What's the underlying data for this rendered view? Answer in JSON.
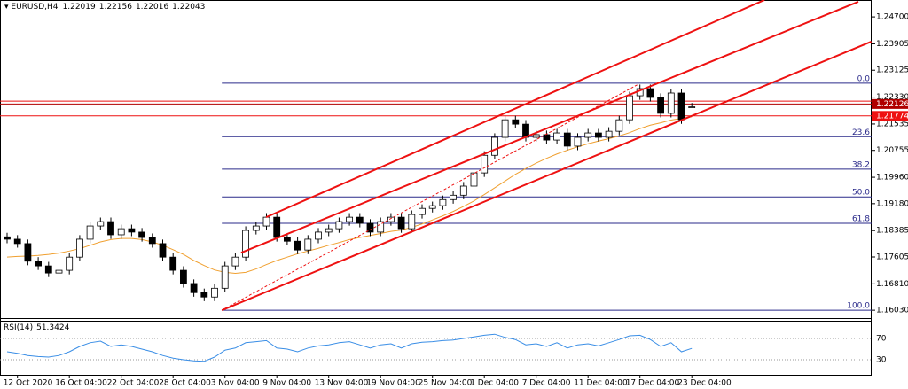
{
  "chart_data": {
    "type": "candlestick",
    "title": "EURUSD,H4",
    "categories": [
      null,
      "12 Oct 2020",
      null,
      null,
      null,
      null,
      "16 Oct 04:00",
      null,
      null,
      null,
      null,
      "22 Oct 04:00",
      null,
      null,
      null,
      null,
      "28 Oct 04:00",
      null,
      null,
      null,
      null,
      "3 Nov 04:00",
      null,
      null,
      null,
      null,
      "9 Nov 04:00",
      null,
      null,
      null,
      null,
      "13 Nov 04:00",
      null,
      null,
      null,
      null,
      "19 Nov 04:00",
      null,
      null,
      null,
      null,
      "25 Nov 04:00",
      null,
      null,
      null,
      null,
      "1 Dec 04:00",
      null,
      null,
      null,
      null,
      "7 Dec 04:00",
      null,
      null,
      null,
      null,
      "11 Dec 04:00",
      null,
      null,
      null,
      null,
      "17 Dec 04:00",
      null,
      null,
      null,
      null,
      "23 Dec 04:00"
    ],
    "open": [
      1.182,
      1.1813,
      1.18,
      1.1748,
      1.1734,
      1.1713,
      1.1721,
      1.176,
      1.1813,
      1.1852,
      1.1865,
      1.1826,
      1.1844,
      1.1834,
      1.1818,
      1.18,
      1.176,
      1.1721,
      1.1682,
      1.1655,
      1.1642,
      1.1668,
      1.1734,
      1.176,
      1.1839,
      1.1852,
      1.1878,
      1.1818,
      1.1807,
      1.1781,
      1.1813,
      1.1834,
      1.1844,
      1.1865,
      1.1878,
      1.186,
      1.1834,
      1.1865,
      1.1878,
      1.1844,
      1.1886,
      1.1904,
      1.1912,
      1.193,
      1.1943,
      1.197,
      1.2009,
      1.2061,
      1.2114,
      1.2166,
      1.2153,
      1.2114,
      1.2122,
      1.2106,
      1.2127,
      1.2088,
      1.2114,
      1.2127,
      1.2114,
      1.2132,
      1.2166,
      1.2237,
      1.2258,
      1.2232,
      1.2185,
      1.2245,
      1.22019
    ],
    "high": [
      1.1832,
      1.1825,
      1.1812,
      1.176,
      1.1746,
      1.1733,
      1.1772,
      1.1825,
      1.1864,
      1.1877,
      1.1877,
      1.1856,
      1.1856,
      1.1846,
      1.183,
      1.1812,
      1.1772,
      1.1733,
      1.1694,
      1.1667,
      1.168,
      1.1746,
      1.1772,
      1.1851,
      1.1864,
      1.189,
      1.189,
      1.183,
      1.1819,
      1.1825,
      1.1846,
      1.1856,
      1.1877,
      1.189,
      1.189,
      1.1872,
      1.1877,
      1.189,
      1.189,
      1.1898,
      1.1916,
      1.1924,
      1.1942,
      1.1955,
      1.1982,
      1.2021,
      1.2073,
      1.2126,
      1.2178,
      1.2178,
      1.2165,
      1.2134,
      1.2134,
      1.2139,
      1.2139,
      1.2126,
      1.2139,
      1.2139,
      1.2144,
      1.2178,
      1.2249,
      1.227,
      1.227,
      1.2244,
      1.2257,
      1.2257,
      1.22156
    ],
    "low": [
      1.1801,
      1.1788,
      1.1736,
      1.1722,
      1.1701,
      1.1701,
      1.1709,
      1.1748,
      1.1801,
      1.184,
      1.1814,
      1.1814,
      1.1822,
      1.1806,
      1.1788,
      1.1748,
      1.1709,
      1.167,
      1.1643,
      1.163,
      1.163,
      1.1656,
      1.1722,
      1.1748,
      1.1827,
      1.184,
      1.1806,
      1.1795,
      1.1769,
      1.1769,
      1.1801,
      1.1822,
      1.1832,
      1.1853,
      1.1848,
      1.1822,
      1.1822,
      1.1853,
      1.1832,
      1.1832,
      1.1874,
      1.1892,
      1.19,
      1.1918,
      1.1931,
      1.1958,
      1.1997,
      1.2049,
      1.2102,
      1.2141,
      1.2102,
      1.2102,
      1.2094,
      1.2094,
      1.2076,
      1.2076,
      1.2102,
      1.2102,
      1.2102,
      1.212,
      1.2154,
      1.2225,
      1.222,
      1.2173,
      1.2173,
      1.2154,
      1.22016
    ],
    "close": [
      1.1813,
      1.18,
      1.1748,
      1.1734,
      1.1713,
      1.1721,
      1.176,
      1.1813,
      1.1852,
      1.1865,
      1.1826,
      1.1844,
      1.1834,
      1.1818,
      1.18,
      1.176,
      1.1721,
      1.1682,
      1.1655,
      1.1642,
      1.1668,
      1.1734,
      1.176,
      1.1839,
      1.1852,
      1.1878,
      1.1818,
      1.1807,
      1.1781,
      1.1813,
      1.1834,
      1.1844,
      1.1865,
      1.1878,
      1.186,
      1.1834,
      1.1865,
      1.1878,
      1.1844,
      1.1886,
      1.1904,
      1.1912,
      1.193,
      1.1943,
      1.197,
      1.2009,
      1.2061,
      1.2114,
      1.2166,
      1.2153,
      1.2114,
      1.2122,
      1.2106,
      1.2127,
      1.2088,
      1.2114,
      1.2127,
      1.2114,
      1.2132,
      1.2166,
      1.2237,
      1.2258,
      1.2232,
      1.2185,
      1.2245,
      1.2166,
      1.22043
    ],
    "ylim": [
      1.1585,
      1.252
    ],
    "yticks": [
      {
        "value": 1.247,
        "label": "1.24700"
      },
      {
        "value": 1.23905,
        "label": "1.23905"
      },
      {
        "value": 1.23125,
        "label": "1.23125"
      },
      {
        "value": 1.2233,
        "label": "1.22330"
      },
      {
        "value": 1.21535,
        "label": "1.21535"
      },
      {
        "value": 1.20755,
        "label": "1.20755"
      },
      {
        "value": 1.1996,
        "label": "1.19960"
      },
      {
        "value": 1.1918,
        "label": "1.19180"
      },
      {
        "value": 1.18385,
        "label": "1.18385"
      },
      {
        "value": 1.17605,
        "label": "1.17605"
      },
      {
        "value": 1.1681,
        "label": "1.16810"
      },
      {
        "value": 1.1603,
        "label": "1.16030"
      }
    ],
    "series": [
      {
        "color": "#f0a030",
        "values": [
          1.176,
          1.1762,
          1.1763,
          1.1765,
          1.1768,
          1.1772,
          1.1778,
          1.1785,
          1.1795,
          1.1805,
          1.1812,
          1.1815,
          1.1815,
          1.1812,
          1.1805,
          1.1795,
          1.1782,
          1.1768,
          1.175,
          1.1735,
          1.1722,
          1.1715,
          1.1712,
          1.1715,
          1.1725,
          1.1738,
          1.175,
          1.176,
          1.177,
          1.1778,
          1.1786,
          1.1795,
          1.1803,
          1.1812,
          1.1818,
          1.1824,
          1.183,
          1.1836,
          1.184,
          1.1848,
          1.1858,
          1.187,
          1.1882,
          1.1895,
          1.191,
          1.1926,
          1.1945,
          1.1965,
          1.1985,
          1.2005,
          1.2022,
          1.2038,
          1.2052,
          1.2065,
          1.2076,
          1.2086,
          1.2095,
          1.2103,
          1.211,
          1.2118,
          1.2128,
          1.214,
          1.215,
          1.2157,
          1.2165,
          1.217,
          1.2175
        ]
      }
    ],
    "trendlines": [
      {
        "x": [
          20.7,
          83.3
        ],
        "y": [
          1.1603,
          1.2397
        ],
        "color": "#ee1111"
      },
      {
        "x": [
          22.56,
          82.05
        ],
        "y": [
          1.1773,
          1.2515
        ],
        "color": "#ee1111"
      },
      {
        "x": [
          24.96,
          73.0
        ],
        "y": [
          1.1878,
          1.252
        ],
        "color": "#ee1111"
      },
      {
        "x": [
          20.7,
          60.85
        ],
        "y": [
          1.1603,
          1.2271
        ],
        "color": "#ee1111",
        "dashed": true
      }
    ],
    "fib_start": 20.7,
    "fib_color": "#2a2a8a",
    "fib_levels": [
      {
        "level": {
          "value": 0,
          "label": "0.0"
        },
        "price": 1.2274
      },
      {
        "level": 23.6,
        "price": 1.2116
      },
      {
        "level": 38.2,
        "price": 1.202
      },
      {
        "level": {
          "value": 50,
          "label": "50.0"
        },
        "price": 1.1938
      },
      {
        "level": 61.8,
        "price": 1.186
      },
      {
        "level": {
          "value": 100,
          "label": "100.0"
        },
        "price": 1.1603
      }
    ],
    "hlines": [
      {
        "value": 1.2221,
        "color": "#ee1111"
      }
    ],
    "price_lines": [
      {
        "value": 1.22126,
        "color": "#b00000"
      },
      {
        "value": 1.21774,
        "color": "#ee1111"
      }
    ],
    "rsi": {
      "name": "RSI(14)",
      "color": "#3a8ee6",
      "ylim": [
        0,
        100
      ],
      "yticks": [
        70,
        30
      ],
      "values": [
        45,
        42,
        38,
        36,
        35,
        38,
        45,
        55,
        62,
        65,
        55,
        58,
        55,
        50,
        45,
        38,
        33,
        30,
        28,
        27,
        35,
        48,
        52,
        62,
        64,
        66,
        52,
        50,
        45,
        52,
        56,
        58,
        62,
        64,
        58,
        52,
        58,
        60,
        52,
        60,
        63,
        64,
        66,
        67,
        70,
        73,
        76,
        78,
        72,
        68,
        58,
        60,
        55,
        62,
        52,
        58,
        60,
        56,
        62,
        68,
        75,
        76,
        68,
        55,
        62,
        45,
        51.3424
      ]
    }
  }
}
